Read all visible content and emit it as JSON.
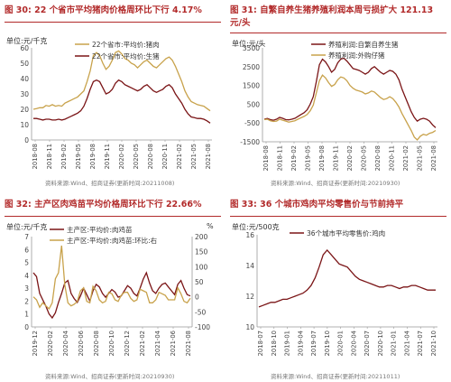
{
  "colors": {
    "title": "#b22a2a",
    "maroon": "#7a1416",
    "gold": "#c8a24b"
  },
  "panels": {
    "p30": {
      "title": "图 30:  22 个省市平均猪肉价格周环比下行 4.17%",
      "unit": "单位:元/千克",
      "source": "资料来源:Wind、招商证券(更新时间:20211008)"
    },
    "p31": {
      "title": "图 31:  自繁自养生猪养殖利润本周亏损扩大 121.13",
      "title2": "元/头",
      "unit": "单位:元/头",
      "source": "资料来源:Wind、招商证券(更新时间:20210930)"
    },
    "p32": {
      "title": "图 32:  主产区肉鸡苗平均价格周环比下行 22.66%",
      "unit": "单位:元/千克",
      "unit_right": "%",
      "source": "资料来源:Wind、招商证券(更新时间:20210930)"
    },
    "p33": {
      "title": "图 33:  36 个城市鸡肉平均零售价与节前持平",
      "unit": "单位:元/500克",
      "source": "资料来源:Wind、招商证券(更新时间:20211011)"
    }
  },
  "chart_data": [
    {
      "type": "line",
      "x_ticks": [
        "2018-08",
        "2018-11",
        "2019-02",
        "2019-05",
        "2019-08",
        "2019-11",
        "2020-02",
        "2020-05",
        "2020-08",
        "2020-11",
        "2021-02",
        "2021-05",
        "2021-08"
      ],
      "ylim": [
        0,
        60
      ],
      "y_ticks": [
        0,
        10,
        20,
        30,
        40,
        50,
        60
      ],
      "series": [
        {
          "name": "22个省市:平均价:猪肉",
          "color": "#c8a24b",
          "values": [
            20,
            20.5,
            21,
            21,
            22.5,
            22,
            23,
            22,
            22.5,
            22,
            24,
            25,
            26,
            27,
            28,
            30,
            32,
            38,
            45,
            55,
            57,
            55,
            50,
            46,
            48,
            52,
            57,
            58,
            56,
            53,
            52,
            50,
            49,
            47,
            49,
            51,
            52,
            50,
            48,
            47,
            49,
            51,
            53,
            54,
            52,
            48,
            43,
            38,
            32,
            28,
            25,
            24,
            23,
            22.5,
            22,
            20.5,
            19
          ]
        },
        {
          "name": "22个省市:平均价:生猪",
          "color": "#7a1416",
          "values": [
            14,
            14,
            13.5,
            13,
            13.5,
            13.5,
            13,
            13,
            13.5,
            13,
            13.5,
            14.5,
            15.5,
            16.5,
            17.5,
            19,
            22,
            27,
            33,
            38,
            39,
            38,
            34,
            30,
            31,
            33,
            37,
            39,
            38,
            36,
            35,
            34,
            33,
            32,
            33,
            35,
            36,
            34,
            32,
            31,
            32,
            33,
            35,
            36,
            34,
            30,
            27,
            24,
            20,
            17,
            15,
            14.5,
            14,
            14,
            13.5,
            12.5,
            11
          ]
        }
      ]
    },
    {
      "type": "line",
      "x_ticks": [
        "2018-08",
        "2018-11",
        "2019-02",
        "2019-05",
        "2019-08",
        "2019-11",
        "2020-02",
        "2020-05",
        "2020-08",
        "2020-11",
        "2021-02",
        "2021-05",
        "2021-08"
      ],
      "ylim": [
        -1500,
        3500
      ],
      "y_ticks": [
        -1500,
        -500,
        500,
        1500,
        2500,
        3500
      ],
      "series": [
        {
          "name": "养殖利润:自繁自养生猪",
          "color": "#7a1416",
          "values": [
            -300,
            -260,
            -320,
            -350,
            -300,
            -200,
            -250,
            -320,
            -330,
            -300,
            -250,
            -150,
            -50,
            50,
            200,
            500,
            900,
            1700,
            2600,
            2900,
            2750,
            2500,
            2200,
            2350,
            2700,
            2900,
            2950,
            2800,
            2600,
            2400,
            2350,
            2300,
            2200,
            2100,
            2200,
            2400,
            2500,
            2350,
            2200,
            2100,
            2200,
            2300,
            2250,
            2100,
            1800,
            1300,
            900,
            500,
            100,
            -200,
            -400,
            -300,
            -250,
            -300,
            -400,
            -600,
            -750
          ]
        },
        {
          "name": "养殖利润:外购仔猪",
          "color": "#c8a24b",
          "values": [
            -320,
            -300,
            -380,
            -420,
            -400,
            -300,
            -350,
            -400,
            -450,
            -420,
            -380,
            -300,
            -220,
            -150,
            -50,
            150,
            450,
            1100,
            1750,
            2050,
            1900,
            1650,
            1450,
            1550,
            1800,
            1950,
            1900,
            1750,
            1500,
            1350,
            1250,
            1200,
            1150,
            1050,
            1100,
            1200,
            1150,
            1000,
            850,
            750,
            800,
            900,
            800,
            600,
            350,
            0,
            -300,
            -600,
            -900,
            -1250,
            -1400,
            -1200,
            -1100,
            -1150,
            -1050,
            -1000,
            -900
          ]
        }
      ]
    },
    {
      "type": "line",
      "x_ticks": [
        "2019-12",
        "2020-02",
        "2020-04",
        "2020-06",
        "2020-08",
        "2020-10",
        "2020-12",
        "2021-02",
        "2021-04",
        "2021-06",
        "2021-08"
      ],
      "ylim_left": [
        0,
        7
      ],
      "y_ticks_left": [
        0,
        1,
        2,
        3,
        4,
        5,
        6,
        7
      ],
      "ylim_right": [
        -100,
        200
      ],
      "y_ticks_right": [
        -100,
        -50,
        0,
        50,
        100,
        150,
        200
      ],
      "series": [
        {
          "name": "主产区:平均价:肉鸡苗",
          "color": "#7a1416",
          "axis": "left",
          "values": [
            4.2,
            3.9,
            2.6,
            2.1,
            1.6,
            1.0,
            0.7,
            1.1,
            1.9,
            2.6,
            3.4,
            3.6,
            2.6,
            2.2,
            1.9,
            2.4,
            3.0,
            2.5,
            2.0,
            2.8,
            3.3,
            3.1,
            2.6,
            2.3,
            2.6,
            2.9,
            2.7,
            2.3,
            2.4,
            2.8,
            3.2,
            3.0,
            2.6,
            2.4,
            3.0,
            3.7,
            4.2,
            3.4,
            2.8,
            2.6,
            3.0,
            3.3,
            3.4,
            3.1,
            2.8,
            2.5,
            3.3,
            3.6,
            3.0,
            2.5,
            2.4
          ]
        },
        {
          "name": "主产区:平均价:肉鸡苗:环比:右",
          "color": "#c8a24b",
          "axis": "right",
          "values": [
            0,
            -10,
            -35,
            -20,
            -30,
            -40,
            -20,
            60,
            80,
            170,
            40,
            -20,
            -30,
            -25,
            -15,
            20,
            30,
            -15,
            -20,
            35,
            20,
            -10,
            -20,
            -15,
            15,
            10,
            -10,
            -15,
            5,
            15,
            15,
            -5,
            -15,
            -10,
            25,
            20,
            15,
            -20,
            -20,
            -10,
            15,
            10,
            5,
            -10,
            -10,
            -10,
            30,
            10,
            -15,
            -20,
            -5
          ]
        }
      ]
    },
    {
      "type": "line",
      "x_ticks": [
        "2018-07",
        "2018-10",
        "2019-01",
        "2019-04",
        "2019-07",
        "2019-10",
        "2020-01",
        "2020-04",
        "2020-07",
        "2020-10",
        "2021-01",
        "2021-04",
        "2021-07",
        "2021-10"
      ],
      "ylim": [
        10,
        16
      ],
      "y_ticks": [
        10,
        12,
        14,
        16
      ],
      "series": [
        {
          "name": "36个城市平均零售价:鸡肉",
          "color": "#7a1416",
          "values": [
            11.3,
            11.4,
            11.5,
            11.6,
            11.6,
            11.7,
            11.8,
            11.8,
            11.9,
            12.0,
            12.1,
            12.2,
            12.4,
            12.7,
            13.2,
            13.9,
            14.7,
            15.0,
            14.7,
            14.4,
            14.1,
            14.0,
            13.9,
            13.6,
            13.3,
            13.1,
            13.0,
            12.9,
            12.8,
            12.7,
            12.6,
            12.6,
            12.7,
            12.7,
            12.6,
            12.5,
            12.6,
            12.6,
            12.7,
            12.7,
            12.6,
            12.5,
            12.4,
            12.4,
            12.4
          ]
        }
      ]
    }
  ]
}
